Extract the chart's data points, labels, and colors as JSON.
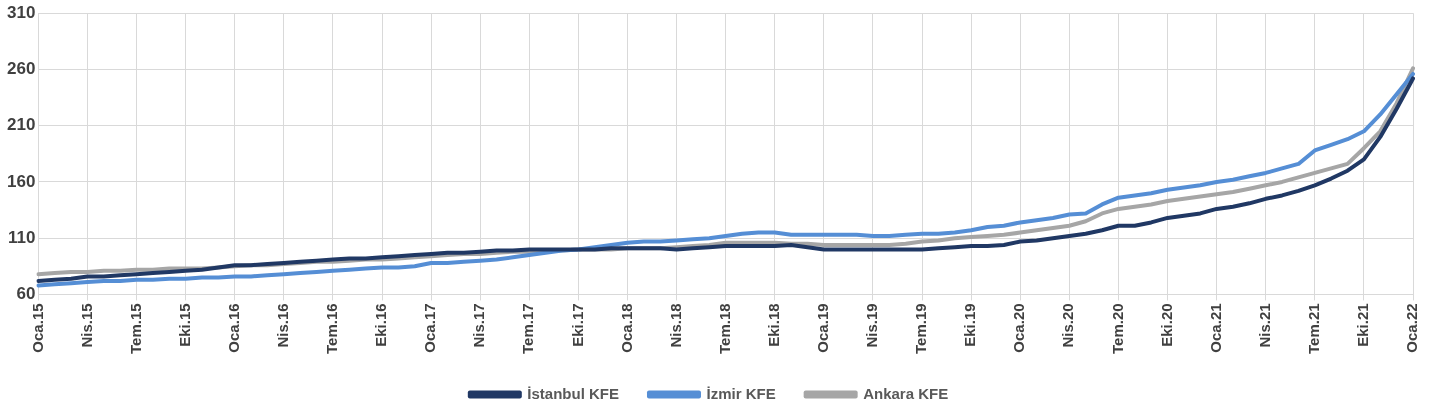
{
  "chart_data": {
    "type": "line",
    "categories": [
      "Oca.15",
      null,
      null,
      "Nis.15",
      null,
      null,
      "Tem.15",
      null,
      null,
      "Eki.15",
      null,
      null,
      "Oca.16",
      null,
      null,
      "Nis.16",
      null,
      null,
      "Tem.16",
      null,
      null,
      "Eki.16",
      null,
      null,
      "Oca.17",
      null,
      null,
      "Nis.17",
      null,
      null,
      "Tem.17",
      null,
      null,
      "Eki.17",
      null,
      null,
      "Oca.18",
      null,
      null,
      "Nis.18",
      null,
      null,
      "Tem.18",
      null,
      null,
      "Eki.18",
      null,
      null,
      "Oca.19",
      null,
      null,
      "Nis.19",
      null,
      null,
      "Tem.19",
      null,
      null,
      "Eki.19",
      null,
      null,
      "Oca.20",
      null,
      null,
      "Nis.20",
      null,
      null,
      "Tem.20",
      null,
      null,
      "Eki.20",
      null,
      null,
      "Oca.21",
      null,
      null,
      "Nis.21",
      null,
      null,
      "Tem.21",
      null,
      null,
      "Eki.21",
      null,
      null,
      "Oca.22"
    ],
    "series": [
      {
        "name": "İstanbul KFE",
        "color": "#203864",
        "values": [
          72,
          73,
          74,
          76,
          76,
          77,
          78,
          79,
          80,
          81,
          82,
          84,
          86,
          86,
          87,
          88,
          89,
          90,
          91,
          92,
          92,
          93,
          94,
          95,
          96,
          97,
          97,
          98,
          99,
          99,
          100,
          100,
          100,
          100,
          100,
          101,
          101,
          101,
          101,
          100,
          101,
          102,
          103,
          103,
          103,
          103,
          104,
          102,
          100,
          100,
          100,
          100,
          100,
          100,
          100,
          101,
          102,
          103,
          103,
          104,
          107,
          108,
          110,
          112,
          114,
          117,
          121,
          121,
          124,
          128,
          130,
          132,
          136,
          138,
          141,
          145,
          148,
          152,
          157,
          163,
          170,
          180,
          200,
          225,
          252
        ]
      },
      {
        "name": "İzmir KFE",
        "color": "#558ed5",
        "values": [
          68,
          69,
          70,
          71,
          72,
          72,
          73,
          73,
          74,
          74,
          75,
          75,
          76,
          76,
          77,
          78,
          79,
          80,
          81,
          82,
          83,
          84,
          84,
          85,
          88,
          88,
          89,
          90,
          91,
          93,
          95,
          97,
          99,
          100,
          102,
          104,
          106,
          107,
          107,
          108,
          109,
          110,
          112,
          114,
          115,
          115,
          113,
          113,
          113,
          113,
          113,
          112,
          112,
          113,
          114,
          114,
          115,
          117,
          120,
          121,
          124,
          126,
          128,
          131,
          132,
          140,
          146,
          148,
          150,
          153,
          155,
          157,
          160,
          162,
          165,
          168,
          172,
          176,
          188,
          193,
          198,
          205,
          220,
          238,
          256
        ]
      },
      {
        "name": "Ankara KFE",
        "color": "#a6a6a6",
        "values": [
          78,
          79,
          80,
          80,
          81,
          81,
          82,
          82,
          83,
          83,
          83,
          84,
          85,
          86,
          86,
          87,
          88,
          89,
          89,
          90,
          91,
          91,
          92,
          93,
          94,
          95,
          96,
          96,
          97,
          98,
          98,
          99,
          99,
          100,
          100,
          100,
          101,
          101,
          101,
          102,
          103,
          104,
          106,
          106,
          106,
          106,
          105,
          105,
          104,
          104,
          104,
          104,
          104,
          105,
          107,
          108,
          110,
          111,
          112,
          113,
          115,
          117,
          119,
          121,
          125,
          132,
          136,
          138,
          140,
          143,
          145,
          147,
          149,
          151,
          154,
          157,
          160,
          164,
          168,
          172,
          176,
          190,
          205,
          230,
          261
        ]
      }
    ],
    "ylim": [
      60,
      310
    ],
    "yticks": [
      60,
      110,
      160,
      210,
      260,
      310
    ],
    "grid": true,
    "legend": "bottom",
    "marker": "none",
    "line_style": "solid"
  }
}
